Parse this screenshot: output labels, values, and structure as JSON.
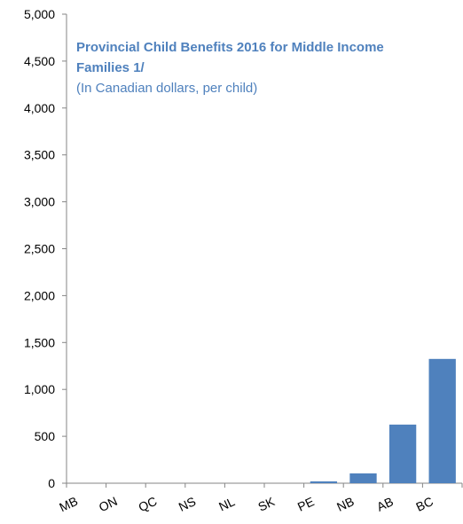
{
  "chart_data": {
    "type": "bar",
    "title": "Provincial Child Benefits 2016 for Middle Income Families 1/",
    "title_lines": [
      "Provincial Child Benefits 2016 for Middle Income",
      "Families 1/"
    ],
    "subtitle": "(In Canadian dollars, per child)",
    "categories": [
      "MB",
      "ON",
      "QC",
      "NS",
      "NL",
      "SK",
      "PE",
      "NB",
      "AB",
      "BC"
    ],
    "values": [
      0,
      0,
      0,
      0,
      0,
      0,
      20,
      105,
      625,
      1325
    ],
    "ylim": [
      0,
      5000
    ],
    "yticks": [
      0,
      500,
      1000,
      1500,
      2000,
      2500,
      3000,
      3500,
      4000,
      4500,
      5000
    ],
    "ytick_labels": [
      "0",
      "500",
      "1,000",
      "1,500",
      "2,000",
      "2,500",
      "3,000",
      "3,500",
      "4,000",
      "4,500",
      "5,000"
    ],
    "xlabel": "",
    "ylabel": "",
    "grid": false,
    "legend": "none",
    "colors": {
      "bar": "#4f81bd",
      "title": "#4f81bd",
      "axis": "#868686"
    }
  }
}
